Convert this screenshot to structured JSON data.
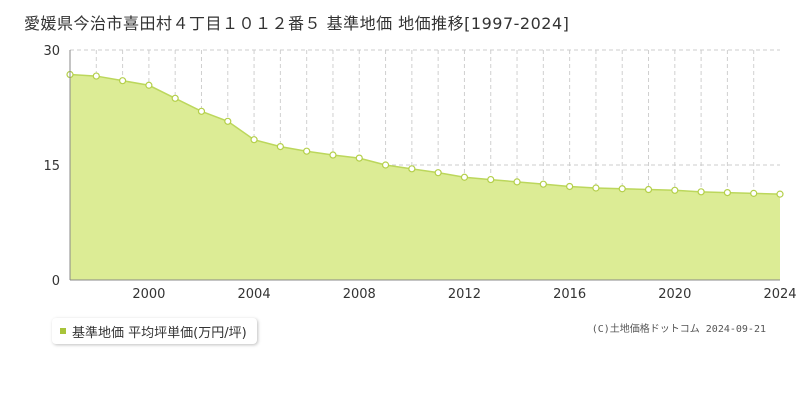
{
  "title": "愛媛県今治市喜田村４丁目１０１２番５ 基準地価 地価推移[1997-2024]",
  "legend": {
    "label": "基準地価 平均坪単価(万円/坪)"
  },
  "copyright": "(C)土地価格ドットコム 2024-09-21",
  "colors": {
    "area": "#dcec95",
    "line": "#bcd75c",
    "point_fill": "#ffffff",
    "point_stroke": "#b4cf4a",
    "legend_marker": "#a8c43a"
  },
  "chart_data": {
    "type": "area",
    "x": [
      1997,
      1998,
      1999,
      2000,
      2001,
      2002,
      2003,
      2004,
      2005,
      2006,
      2007,
      2008,
      2009,
      2010,
      2011,
      2012,
      2013,
      2014,
      2015,
      2016,
      2017,
      2018,
      2019,
      2020,
      2021,
      2022,
      2023,
      2024
    ],
    "series": [
      {
        "name": "基準地価 平均坪単価(万円/坪)",
        "values": [
          26.8,
          26.6,
          26.0,
          25.4,
          23.7,
          22.0,
          20.7,
          18.3,
          17.4,
          16.8,
          16.3,
          15.9,
          15.0,
          14.5,
          14.0,
          13.4,
          13.1,
          12.8,
          12.5,
          12.2,
          12.0,
          11.9,
          11.8,
          11.7,
          11.5,
          11.4,
          11.3,
          11.2
        ]
      }
    ],
    "xlim": [
      1997,
      2024
    ],
    "ylim": [
      0,
      30
    ],
    "yticks": [
      0,
      15,
      30
    ],
    "xticks": [
      2000,
      2004,
      2008,
      2012,
      2016,
      2020,
      2024
    ],
    "grid": true,
    "legend_position": "bottom-left"
  }
}
